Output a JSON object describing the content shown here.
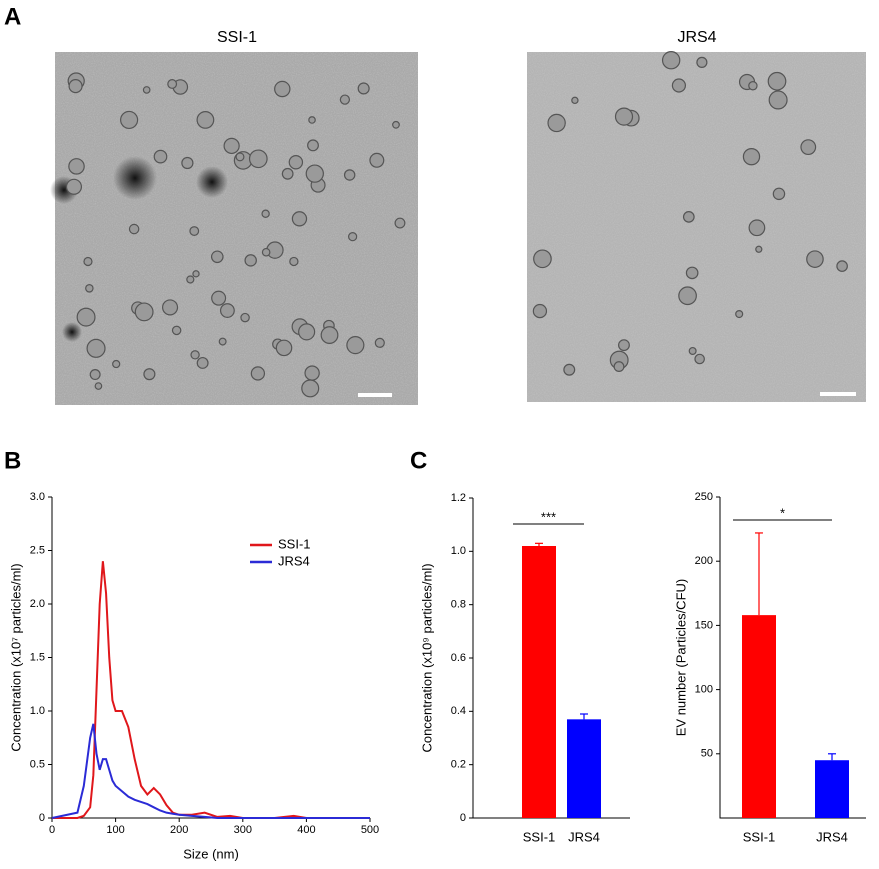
{
  "figure": {
    "panel_labels": [
      "A",
      "B",
      "C"
    ],
    "micrograph_titles": [
      "SSI-1",
      "JRS4"
    ]
  },
  "chart_data": [
    {
      "type": "line",
      "xlabel": "Size (nm)",
      "ylabel": "Concentration (x10⁷ particles/ml)",
      "x": [
        0,
        40,
        50,
        60,
        65,
        70,
        75,
        80,
        85,
        90,
        95,
        100,
        110,
        120,
        130,
        140,
        150,
        160,
        170,
        180,
        190,
        200,
        220,
        240,
        260,
        280,
        300,
        350,
        380,
        400,
        450,
        500
      ],
      "series": [
        {
          "name": "SSI-1",
          "color": "#e0171b",
          "values": [
            0,
            0,
            0.02,
            0.1,
            0.4,
            1.2,
            2.0,
            2.4,
            2.1,
            1.5,
            1.1,
            1.0,
            1.0,
            0.85,
            0.55,
            0.3,
            0.22,
            0.28,
            0.22,
            0.12,
            0.05,
            0.03,
            0.03,
            0.05,
            0.01,
            0.02,
            0,
            0,
            0.02,
            0,
            0,
            0
          ]
        },
        {
          "name": "JRS4",
          "color": "#2b2bd6",
          "values": [
            0,
            0.05,
            0.3,
            0.75,
            0.88,
            0.6,
            0.45,
            0.55,
            0.55,
            0.45,
            0.35,
            0.3,
            0.25,
            0.2,
            0.17,
            0.15,
            0.13,
            0.1,
            0.07,
            0.05,
            0.04,
            0.03,
            0.02,
            0.01,
            0,
            0,
            0,
            0,
            0,
            0,
            0,
            0
          ]
        }
      ],
      "xlim": [
        0,
        500
      ],
      "xticks": [
        0,
        100,
        200,
        300,
        400,
        500
      ],
      "ylim": [
        0,
        3.0
      ],
      "yticks": [
        0,
        0.5,
        {
          "value": 1.0,
          "label": "1.0"
        },
        1.5,
        {
          "value": 2.0,
          "label": "2.0"
        },
        2.5,
        {
          "value": 3.0,
          "label": "3.0"
        }
      ],
      "legend": "upper right"
    },
    {
      "type": "bar",
      "ylabel": "Concentration (x10⁹ particles/ml)",
      "categories": [
        "SSI-1",
        "JRS4"
      ],
      "values": [
        1.02,
        0.37
      ],
      "errors": [
        0.01,
        0.02
      ],
      "colors": [
        "#ff0000",
        "#0000ff"
      ],
      "ylim": [
        0,
        1.2
      ],
      "yticks": [
        0,
        0.2,
        0.4,
        0.6,
        0.8,
        {
          "value": 1.0,
          "label": "1.0"
        },
        1.2
      ],
      "annotation": "***"
    },
    {
      "type": "bar",
      "ylabel": "EV number (Particles/CFU)",
      "categories": [
        "SSI-1",
        "JRS4"
      ],
      "values": [
        158,
        45
      ],
      "errors": [
        64,
        5
      ],
      "colors": [
        "#ff0000",
        "#0000ff"
      ],
      "ylim": [
        0,
        250
      ],
      "yticks": [
        50,
        100,
        150,
        200,
        250
      ],
      "annotation": "*"
    }
  ]
}
